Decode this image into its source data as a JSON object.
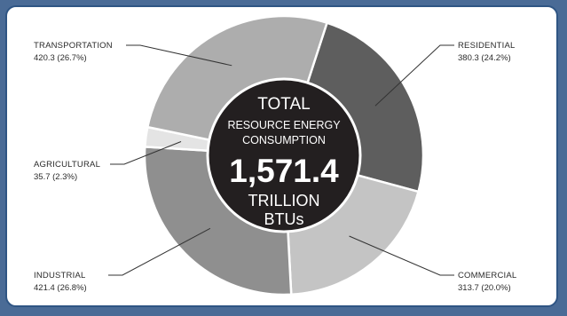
{
  "chart_data": {
    "type": "pie",
    "style": "donut",
    "center": {
      "line1": "TOTAL",
      "line2": "RESOURCE ENERGY",
      "line3": "CONSUMPTION",
      "total": "1,571.4",
      "line4": "TRILLION",
      "line5": "BTUs"
    },
    "slices": [
      {
        "name": "RESIDENTIAL",
        "value": 380.3,
        "value_text": "380.3 (24.2%)",
        "percent": 24.2,
        "color": "#5e5e5e"
      },
      {
        "name": "COMMERCIAL",
        "value": 313.7,
        "value_text": "313.7 (20.0%)",
        "percent": 20.0,
        "color": "#c4c4c4"
      },
      {
        "name": "INDUSTRIAL",
        "value": 421.4,
        "value_text": "421.4 (26.8%)",
        "percent": 26.8,
        "color": "#8f8f8f"
      },
      {
        "name": "AGRICULTURAL",
        "value": 35.7,
        "value_text": "35.7 (2.3%)",
        "percent": 2.3,
        "color": "#e4e4e4"
      },
      {
        "name": "TRANSPORTATION",
        "value": 420.3,
        "value_text": "420.3 (26.7%)",
        "percent": 26.7,
        "color": "#adadad"
      }
    ],
    "start_angle_deg": 18
  },
  "colors": {
    "frame": "#2f5584",
    "background": "#4a6b96",
    "center_disc": "#231f20"
  }
}
